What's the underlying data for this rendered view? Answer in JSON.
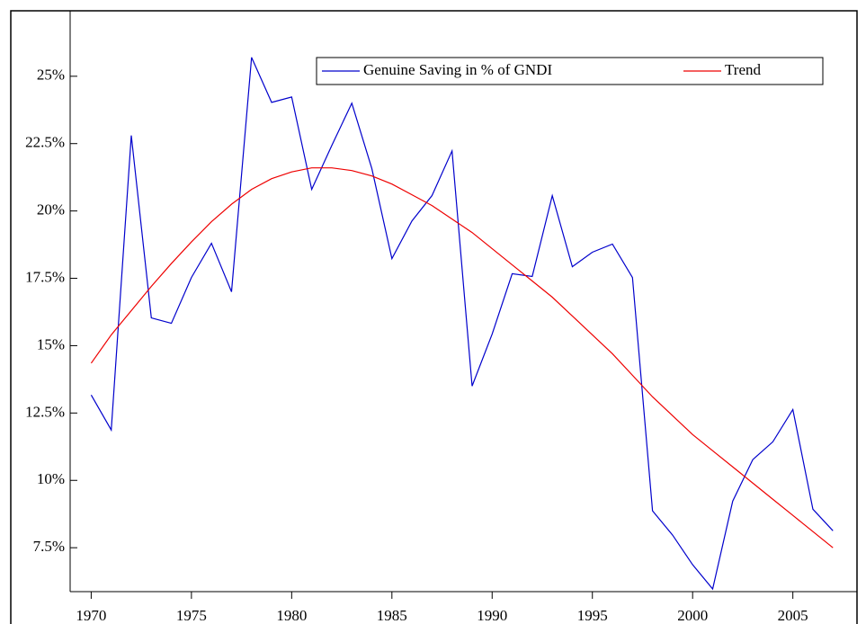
{
  "chart_data": {
    "type": "line",
    "x": [
      1970,
      1971,
      1972,
      1973,
      1974,
      1975,
      1976,
      1977,
      1978,
      1979,
      1980,
      1981,
      1982,
      1983,
      1984,
      1985,
      1986,
      1987,
      1988,
      1989,
      1990,
      1991,
      1992,
      1993,
      1994,
      1995,
      1996,
      1997,
      1998,
      1999,
      2000,
      2001,
      2002,
      2003,
      2004,
      2005,
      2006,
      2007
    ],
    "series": [
      {
        "name": "Genuine Saving in % of GNDI",
        "color": "#0000cc",
        "values": [
          13.17,
          11.87,
          22.8,
          16.03,
          15.83,
          17.53,
          18.8,
          17.0,
          25.7,
          24.03,
          24.23,
          20.8,
          22.43,
          24.0,
          21.57,
          18.23,
          19.63,
          20.57,
          22.23,
          13.5,
          15.43,
          17.67,
          17.57,
          20.57,
          17.93,
          18.47,
          18.77,
          17.53,
          8.87,
          7.97,
          6.87,
          5.97,
          9.23,
          10.77,
          11.43,
          12.63,
          8.93,
          8.13
        ]
      },
      {
        "name": "Trend",
        "color": "#ee0000",
        "values": [
          14.35,
          15.4,
          16.3,
          17.2,
          18.05,
          18.85,
          19.6,
          20.25,
          20.8,
          21.2,
          21.45,
          21.6,
          21.6,
          21.5,
          21.3,
          21.0,
          20.6,
          20.2,
          19.7,
          19.2,
          18.6,
          18.0,
          17.4,
          16.8,
          16.1,
          15.4,
          14.7,
          13.9,
          13.1,
          12.4,
          11.7,
          11.1,
          10.5,
          9.9,
          9.3,
          8.7,
          8.1,
          7.5
        ]
      }
    ],
    "xlim": [
      1968.95,
      2008.2
    ],
    "xticks": [
      1970,
      1975,
      1980,
      1985,
      1990,
      1995,
      2000,
      2005
    ],
    "ylim": [
      5.87,
      27.43
    ],
    "yticks": [
      {
        "value": 7.5,
        "label": "7.5%"
      },
      {
        "value": 10,
        "label": "10%"
      },
      {
        "value": 12.5,
        "label": "12.5%"
      },
      {
        "value": 15,
        "label": "15%"
      },
      {
        "value": 17.5,
        "label": "17.5%"
      },
      {
        "value": 20,
        "label": "20%"
      },
      {
        "value": 22.5,
        "label": "22.5%"
      },
      {
        "value": 25,
        "label": "25%"
      }
    ]
  }
}
